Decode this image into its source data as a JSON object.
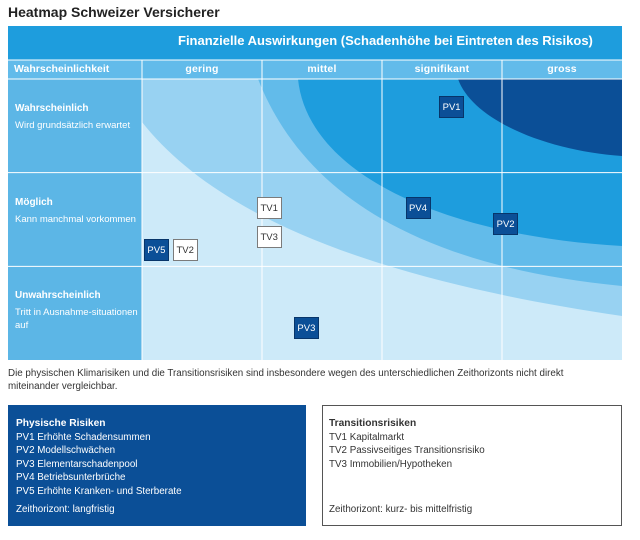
{
  "page": {
    "title": "Heatmap Schweizer Versicherer"
  },
  "chart_data": {
    "type": "heatmap",
    "title": "Finanzielle Auswirkungen (Schadenhöhe bei Eintreten des Risikos)",
    "xlabel": "Finanzielle Auswirkungen (Schadenhöhe bei Eintreten des Risikos)",
    "ylabel": "Wahrscheinlichkeit",
    "x_categories": [
      "gering",
      "mittel",
      "signifikant",
      "gross"
    ],
    "y_categories": [
      {
        "title": "Wahrscheinlich",
        "subtitle": "Wird grundsätzlich erwartet"
      },
      {
        "title": "Möglich",
        "subtitle": "Kann manchmal vorkommen"
      },
      {
        "title": "Unwahrscheinlich",
        "subtitle": "Tritt in Ausnahme-situationen auf"
      }
    ],
    "colors": {
      "band_1": "#cdeaf9",
      "band_2": "#98d2f2",
      "band_3": "#62bbea",
      "band_4": "#1e9ddd",
      "band_5": "#0b4f97",
      "header": "#1e9ddd",
      "label_column": "#5cb6e6",
      "grid": "#ffffff",
      "physical_box": "#0b4f97",
      "transition_box": "#ffffff"
    },
    "risks": [
      {
        "id": "PV1",
        "kind": "physical",
        "impact": 2.58,
        "likelihood": 2.7
      },
      {
        "id": "PV2",
        "kind": "physical",
        "impact": 3.03,
        "likelihood": 1.45
      },
      {
        "id": "PV3",
        "kind": "physical",
        "impact": 1.37,
        "likelihood": 0.34
      },
      {
        "id": "PV4",
        "kind": "physical",
        "impact": 2.3,
        "likelihood": 1.62
      },
      {
        "id": "PV5",
        "kind": "physical",
        "impact": 0.12,
        "likelihood": 1.17
      },
      {
        "id": "TV1",
        "kind": "transition",
        "impact": 1.06,
        "likelihood": 1.62
      },
      {
        "id": "TV2",
        "kind": "transition",
        "impact": 0.36,
        "likelihood": 1.17
      },
      {
        "id": "TV3",
        "kind": "transition",
        "impact": 1.06,
        "likelihood": 1.31
      }
    ]
  },
  "note": "Die physischen Klimarisiken und die Transitionsrisiken sind insbesondere wegen des unterschiedlichen Zeithorizonts nicht direkt miteinander vergleichbar.",
  "legend": {
    "physical": {
      "title": "Physische Risiken",
      "items": [
        "PV1 Erhöhte Schadensummen",
        "PV2 Modellschwächen",
        "PV3 Elementarschadenpool",
        "PV4 Betriebsunterbrüche",
        "PV5 Erhöhte Kranken- und Sterberate"
      ],
      "horizon": "Zeithorizont: langfristig"
    },
    "transition": {
      "title": "Transitionsrisiken",
      "items": [
        "TV1 Kapitalmarkt",
        "TV2 Passivseitiges Transitionsrisiko",
        "TV3 Immobilien/Hypotheken"
      ],
      "horizon": "Zeithorizont: kurz- bis mittelfristig"
    }
  }
}
